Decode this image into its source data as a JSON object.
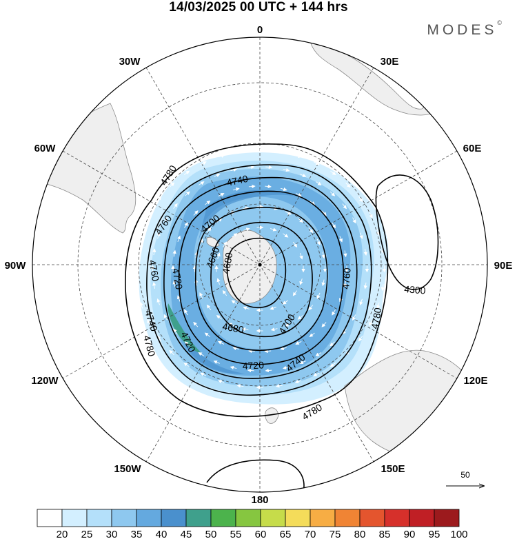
{
  "header": {
    "title": "14/03/2025  00 UTC  + 144 hrs",
    "brand": "MODES",
    "brand_mark": "©"
  },
  "map": {
    "projection": "south polar stereographic",
    "longitude_labels": [
      "0",
      "30E",
      "60E",
      "90E",
      "120E",
      "150E",
      "180",
      "150W",
      "120W",
      "90W",
      "60W",
      "30W"
    ],
    "contour_labels": [
      "4780",
      "4760",
      "4740",
      "4720",
      "4700",
      "4680",
      "4660",
      "4760",
      "4720",
      "4740",
      "4700",
      "4680",
      "4720",
      "4740",
      "4760",
      "4780",
      "4780",
      "4780",
      "4300"
    ],
    "colors": {
      "land": "#efefef",
      "coast": "#888888",
      "contour": "#000000",
      "graticule": "#444444"
    }
  },
  "vector_legend": {
    "label": "50"
  },
  "colorbar": {
    "labels": [
      "20",
      "25",
      "30",
      "35",
      "40",
      "45",
      "50",
      "55",
      "60",
      "65",
      "70",
      "75",
      "80",
      "85",
      "90",
      "95",
      "100"
    ],
    "colors": [
      "#ffffff",
      "#d3efff",
      "#b4e0fa",
      "#8ec8ef",
      "#64a9df",
      "#4a90cd",
      "#3fa08c",
      "#4cb34c",
      "#86c640",
      "#c6dc4a",
      "#f4dc5a",
      "#f7ad44",
      "#f08434",
      "#e4552e",
      "#d6302b",
      "#c01f25",
      "#9c1a1d"
    ]
  }
}
